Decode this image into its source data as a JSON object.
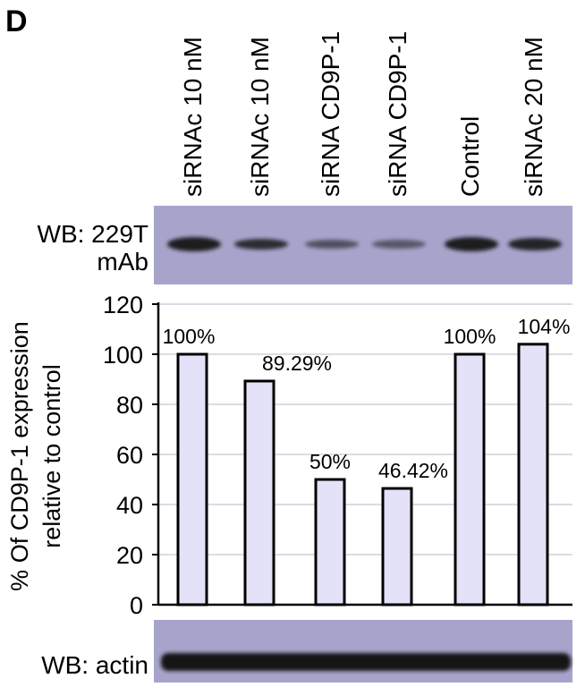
{
  "panel_letter": "D",
  "lanes": [
    "siRNAc 10 nM",
    "siRNAc 10 nM",
    "siRNA CD9P-1",
    "siRNA CD9P-1",
    "Control",
    "siRNAc 20 nM"
  ],
  "western_blots": {
    "top_label_line1": "WB: 229T",
    "top_label_line2": "mAb",
    "bottom_label": "WB: actin",
    "colors": {
      "membrane": "#a7a4cc",
      "membrane_dark": "#9794bd",
      "band": "#181818"
    }
  },
  "chart_data": {
    "type": "bar",
    "categories": [
      "siRNAc 10 nM",
      "siRNAc 10 nM",
      "siRNA CD9P-1",
      "siRNA CD9P-1",
      "Control",
      "siRNAc 20 nM"
    ],
    "values": [
      100,
      89.29,
      50,
      46.42,
      100,
      104
    ],
    "data_labels": [
      "100%",
      "89.29%",
      "50%",
      "46.42%",
      "100%",
      "104%"
    ],
    "title": "",
    "xlabel": "",
    "ylabel_line1": "% Of CD9P-1 expression",
    "ylabel_line2": "relative to control",
    "ylim": [
      0,
      120
    ],
    "yticks": [
      0,
      20,
      40,
      60,
      80,
      100,
      120
    ],
    "grid": true,
    "colors": {
      "bar_fill": "#e4e2f8",
      "bar_stroke": "#000000",
      "grid": "#c8c8d8"
    }
  }
}
